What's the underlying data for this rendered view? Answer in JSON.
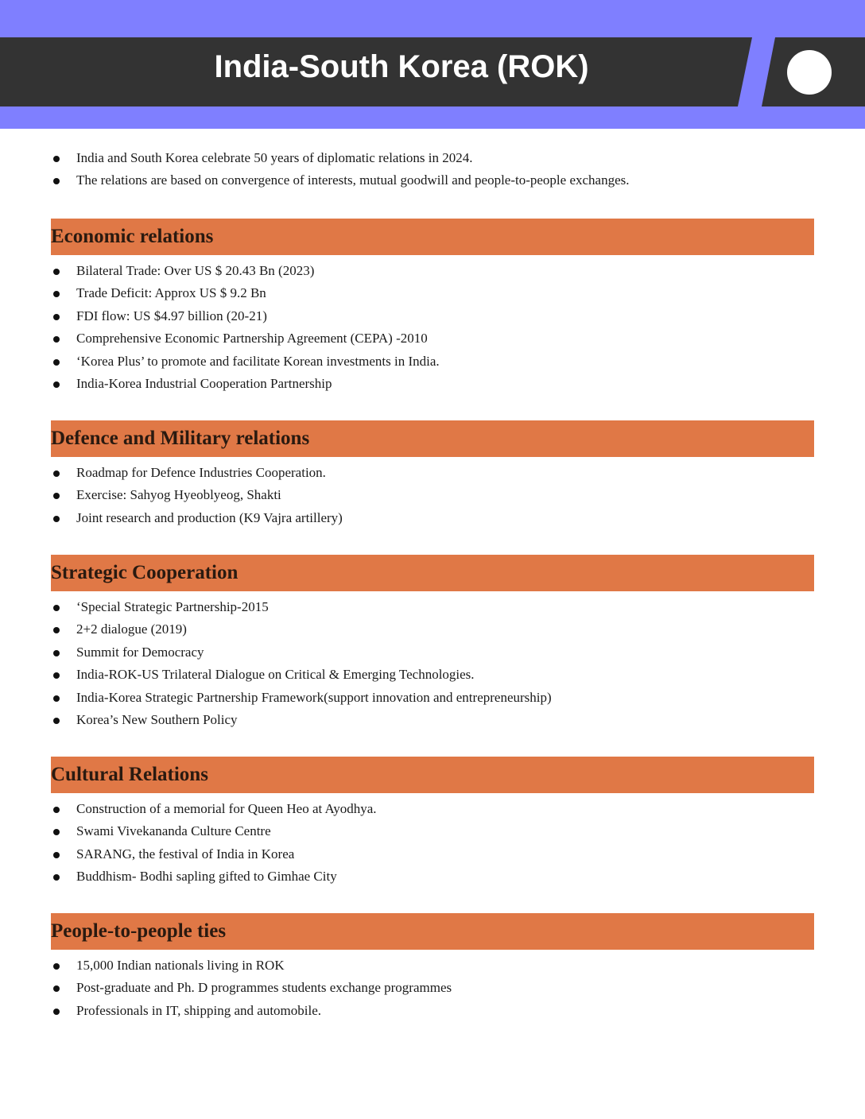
{
  "header": {
    "title": "India-South Korea (ROK)"
  },
  "colors": {
    "band": "#7f7fff",
    "banner": "#333333",
    "section": "#e07846"
  },
  "intro": [
    "India and South Korea celebrate 50 years of diplomatic relations in 2024.",
    "The relations are based on convergence of interests, mutual goodwill and people-to-people exchanges."
  ],
  "sections": [
    {
      "title": "Economic relations",
      "items": [
        "Bilateral Trade: Over US $ 20.43 Bn (2023)",
        "Trade Deficit: Approx US $ 9.2 Bn",
        "FDI flow: US $4.97 billion (20-21)",
        "Comprehensive Economic Partnership Agreement (CEPA) -2010",
        "‘Korea Plus’ to promote and facilitate Korean investments in India.",
        "India-Korea Industrial Cooperation Partnership"
      ]
    },
    {
      "title": "Defence and Military relations",
      "items": [
        "Roadmap for Defence Industries Cooperation.",
        "Exercise: Sahyog Hyeoblyeog, Shakti",
        "Joint research and production (K9 Vajra artillery)"
      ]
    },
    {
      "title": "Strategic Cooperation",
      "items": [
        "‘Special Strategic Partnership-2015",
        "2+2 dialogue (2019)",
        "Summit for Democracy",
        "India-ROK-US Trilateral Dialogue on Critical & Emerging Technologies.",
        "India-Korea Strategic Partnership Framework(support innovation and entrepreneurship)",
        "Korea’s New Southern Policy"
      ]
    },
    {
      "title": "Cultural Relations",
      "items": [
        "Construction of a memorial for Queen Heo at Ayodhya.",
        "Swami Vivekananda Culture Centre",
        "SARANG, the festival of India in Korea",
        "Buddhism- Bodhi sapling gifted to Gimhae City"
      ]
    },
    {
      "title": "People-to-people ties",
      "items": [
        "15,000 Indian nationals living in ROK",
        "Post-graduate and Ph. D programmes students exchange programmes",
        "Professionals in IT, shipping and automobile."
      ]
    }
  ]
}
